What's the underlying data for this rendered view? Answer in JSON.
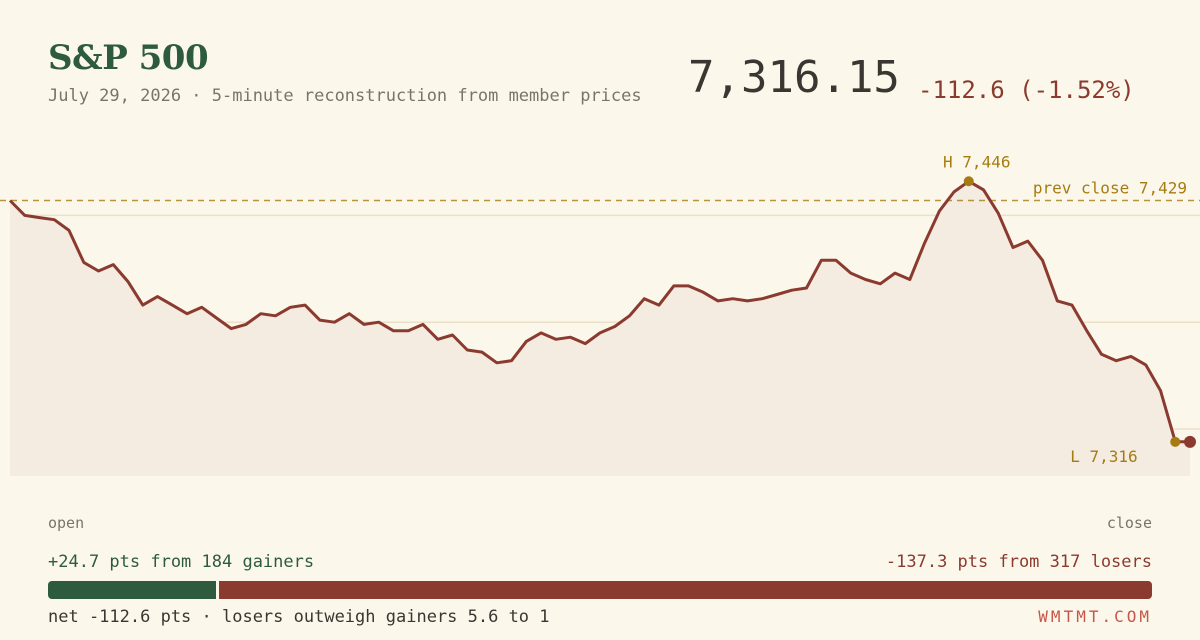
{
  "header": {
    "title": "S&P 500",
    "subtitle": "July 29, 2026 · 5-minute reconstruction from member prices",
    "price": "7,316.15",
    "change": "-112.6 (-1.52%)"
  },
  "colors": {
    "line": "#8b3a2f",
    "fill": "#f4ebe1",
    "accent": "#a67c12",
    "gain": "#2e5a3e",
    "loss": "#8b3a2f",
    "grid": "#ebe1c6"
  },
  "chart_data": {
    "type": "line",
    "x_start_label": "open",
    "x_end_label": "close",
    "ylim": [
      7300,
      7462
    ],
    "prev_close": 7429,
    "prev_close_label": "prev close 7,429",
    "high": 7446,
    "high_label": "H 7,446",
    "low": 7316,
    "low_label": "L 7,316",
    "gridlines": [
      7422,
      7372,
      7322
    ],
    "series": [
      {
        "values": [
          7429,
          7422,
          7421,
          7420,
          7415,
          7400,
          7396,
          7399,
          7391,
          7380,
          7384,
          7380,
          7376,
          7379,
          7374,
          7369,
          7371,
          7376,
          7375,
          7379,
          7380,
          7373,
          7372,
          7376,
          7371,
          7372,
          7368,
          7368,
          7371,
          7364,
          7366,
          7359,
          7358,
          7353,
          7354,
          7363,
          7367,
          7364,
          7365,
          7362,
          7367,
          7370,
          7375,
          7383,
          7380,
          7389,
          7389,
          7386,
          7382,
          7383,
          7382,
          7383,
          7385,
          7387,
          7388,
          7401,
          7401,
          7395,
          7392,
          7390,
          7395,
          7392,
          7409,
          7424,
          7433,
          7438,
          7434,
          7423,
          7407,
          7410,
          7401,
          7382,
          7380,
          7368,
          7357,
          7354,
          7356,
          7352,
          7340,
          7316,
          7316
        ]
      }
    ]
  },
  "breadth": {
    "gainers_text": "+24.7 pts from 184 gainers",
    "losers_text": "-137.3 pts from 317 losers",
    "gain_pts": 24.7,
    "loss_pts": 137.3,
    "net_text": "net -112.6 pts · losers outweigh gainers 5.6 to 1"
  },
  "brand": "WMTMT.COM"
}
